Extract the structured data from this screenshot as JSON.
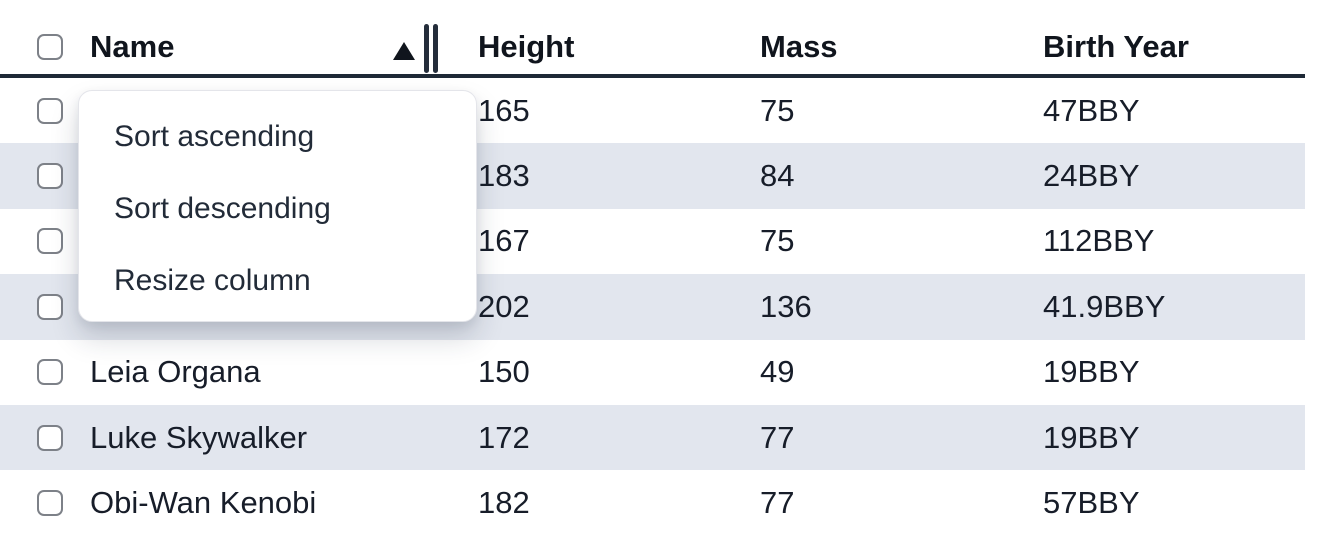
{
  "table": {
    "select_all_checked": false,
    "sort": {
      "column": "Name",
      "direction": "ascending",
      "icon": "triangle-up"
    },
    "columns": [
      {
        "label": "Name"
      },
      {
        "label": "Height"
      },
      {
        "label": "Mass"
      },
      {
        "label": "Birth Year"
      }
    ],
    "rows": [
      {
        "selected": false,
        "name": "",
        "height": "165",
        "mass": "75",
        "birth_year": "47BBY"
      },
      {
        "selected": false,
        "name": "",
        "height": "183",
        "mass": "84",
        "birth_year": "24BBY"
      },
      {
        "selected": false,
        "name": "",
        "height": "167",
        "mass": "75",
        "birth_year": "112BBY"
      },
      {
        "selected": false,
        "name": "",
        "height": "202",
        "mass": "136",
        "birth_year": "41.9BBY"
      },
      {
        "selected": false,
        "name": "Leia Organa",
        "height": "150",
        "mass": "49",
        "birth_year": "19BBY"
      },
      {
        "selected": false,
        "name": "Luke Skywalker",
        "height": "172",
        "mass": "77",
        "birth_year": "19BBY"
      },
      {
        "selected": false,
        "name": "Obi-Wan Kenobi",
        "height": "182",
        "mass": "77",
        "birth_year": "57BBY"
      }
    ]
  },
  "menu": {
    "items": [
      {
        "label": "Sort ascending"
      },
      {
        "label": "Sort descending"
      },
      {
        "label": "Resize column"
      }
    ]
  },
  "icons": {
    "sort_ascending": "triangle-up",
    "resize_handle": "double-vertical-bars"
  },
  "colors": {
    "stripe": "#e2e6ee",
    "header_border": "#1e2936",
    "text": "#171d29",
    "menu_text": "#222b38",
    "checkbox_border": "#7d8188",
    "menu_border": "#e4e5ea",
    "background": "#ffffff"
  }
}
